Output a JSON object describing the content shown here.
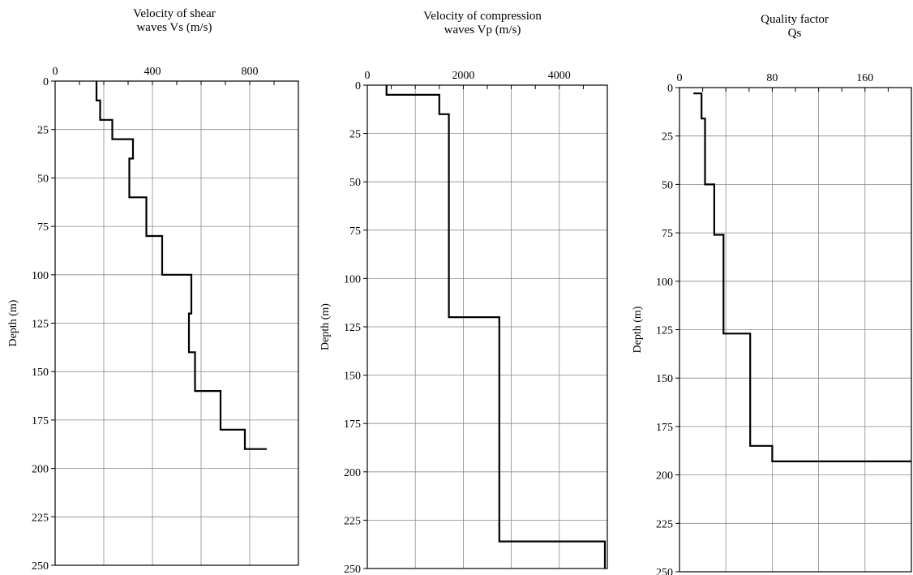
{
  "chart_data": [
    {
      "type": "line",
      "orientation": "depth-profile (x = property, y = depth increasing downward)",
      "title_lines": [
        "Velocity of shear",
        "waves Vs (m/s)"
      ],
      "xlabel": "",
      "ylabel": "Depth (m)",
      "xlim": [
        0,
        1000
      ],
      "ylim": [
        0,
        250
      ],
      "xticks": [
        0,
        400,
        800
      ],
      "ygrid": [
        0,
        25,
        50,
        75,
        100,
        125,
        150,
        175,
        200,
        225,
        250
      ],
      "xgrid": [
        0,
        200,
        400,
        600,
        800,
        1000
      ],
      "grid": true,
      "x": [
        170,
        170,
        185,
        185,
        235,
        235,
        320,
        320,
        305,
        305,
        375,
        375,
        440,
        440,
        560,
        560,
        550,
        550,
        575,
        575,
        680,
        680,
        780,
        780,
        870
      ],
      "y": [
        0,
        10,
        10,
        20,
        20,
        30,
        30,
        40,
        40,
        60,
        60,
        80,
        80,
        100,
        100,
        120,
        120,
        140,
        140,
        160,
        160,
        180,
        180,
        190,
        190
      ]
    },
    {
      "type": "line",
      "orientation": "depth-profile (x = property, y = depth increasing downward)",
      "title_lines": [
        "Velocity of compression",
        "waves Vp (m/s)"
      ],
      "xlabel": "",
      "ylabel": "Depth (m)",
      "xlim": [
        0,
        5000
      ],
      "ylim": [
        0,
        250
      ],
      "xticks": [
        0,
        2000,
        4000
      ],
      "ygrid": [
        0,
        25,
        50,
        75,
        100,
        125,
        150,
        175,
        200,
        225,
        250
      ],
      "xgrid": [
        0,
        1000,
        2000,
        3000,
        4000,
        5000
      ],
      "grid": true,
      "x": [
        400,
        400,
        1500,
        1500,
        1700,
        1700,
        2750,
        2750,
        4950,
        4950
      ],
      "y": [
        0,
        5,
        5,
        15,
        15,
        120,
        120,
        236,
        236,
        250
      ]
    },
    {
      "type": "line",
      "orientation": "depth-profile (x = property, y = depth increasing downward)",
      "title_lines": [
        "Quality factor",
        "Qs"
      ],
      "xlabel": "",
      "ylabel": "Depth (m)",
      "xlim": [
        0,
        200
      ],
      "ylim": [
        0,
        250
      ],
      "xticks": [
        0,
        80,
        160
      ],
      "ygrid": [
        0,
        25,
        50,
        75,
        100,
        125,
        150,
        175,
        200,
        225,
        250
      ],
      "xgrid": [
        0,
        40,
        80,
        120,
        160,
        200
      ],
      "grid": true,
      "x": [
        12,
        19,
        19,
        22,
        22,
        30,
        30,
        38,
        38,
        61,
        61,
        80,
        80,
        100,
        100,
        200
      ],
      "y": [
        3,
        3,
        16,
        16,
        50,
        50,
        76,
        76,
        127,
        127,
        185,
        185,
        193,
        193,
        193,
        193
      ]
    }
  ]
}
